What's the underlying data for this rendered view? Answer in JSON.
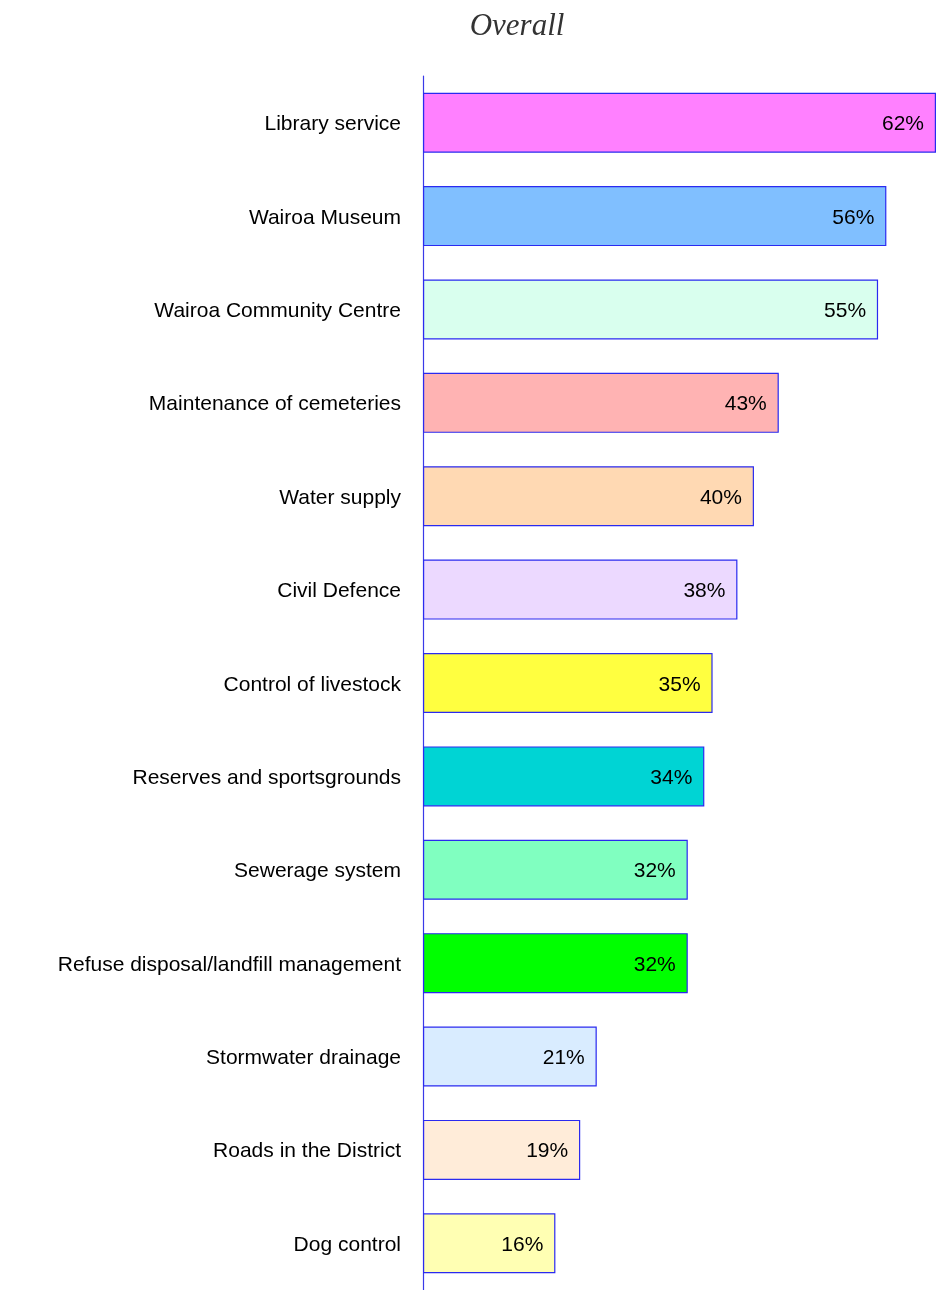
{
  "chart_data": {
    "type": "bar",
    "orientation": "horizontal",
    "title": "Overall",
    "categories": [
      "Library service",
      "Wairoa Museum",
      "Wairoa Community Centre",
      "Maintenance of cemeteries",
      "Water supply",
      "Civil Defence",
      "Control of livestock",
      "Reserves and sportsgrounds",
      "Sewerage system",
      "Refuse disposal/landfill management",
      "Stormwater drainage",
      "Roads in the District",
      "Dog control"
    ],
    "values": [
      62,
      56,
      55,
      43,
      40,
      38,
      35,
      34,
      32,
      32,
      21,
      19,
      16
    ],
    "colors": [
      "#ff80ff",
      "#80bfff",
      "#d9ffee",
      "#ffb3b3",
      "#ffd9b3",
      "#ecd9ff",
      "#ffff40",
      "#00d4d4",
      "#80ffc0",
      "#00ff00",
      "#d9ecff",
      "#ffecd9",
      "#ffffb3"
    ],
    "value_labels": [
      "62%",
      "56%",
      "55%",
      "43%",
      "40%",
      "38%",
      "35%",
      "34%",
      "32%",
      "32%",
      "21%",
      "19%",
      "16%"
    ]
  }
}
